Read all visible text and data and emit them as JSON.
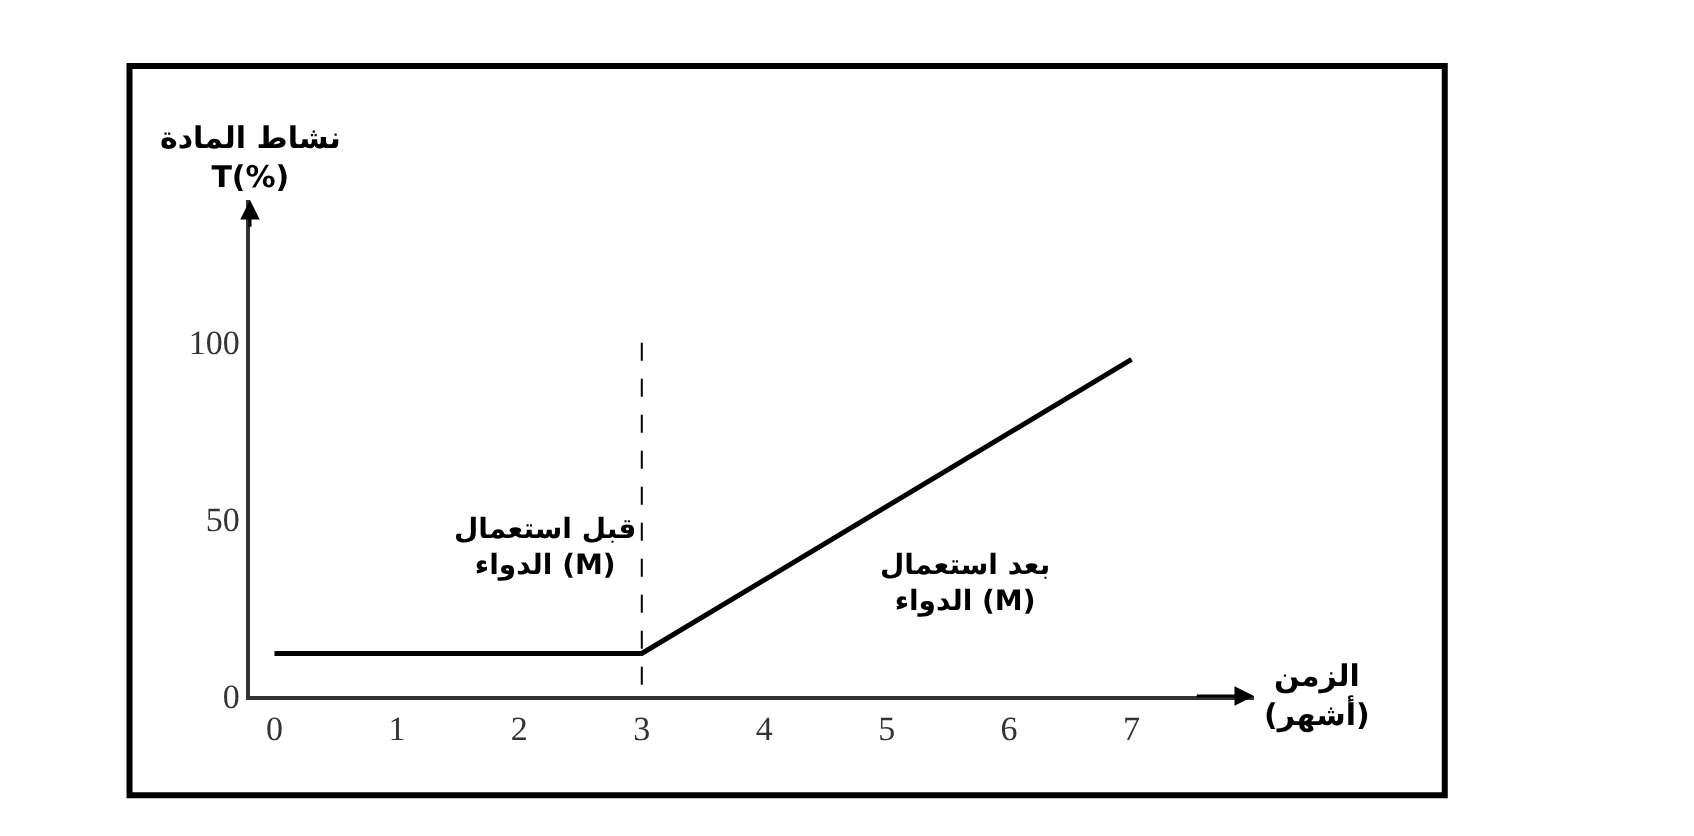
{
  "chart_data": {
    "type": "line",
    "xlabel": "الزمن\n(أشهر)",
    "ylabel": "نشاط المادة\nT(%)",
    "x": [
      0,
      3,
      7
    ],
    "series": [
      {
        "color": "#000000",
        "values": [
          12,
          12,
          95
        ]
      }
    ],
    "xlim": [
      -0.2,
      8
    ],
    "ylim": [
      0,
      140
    ],
    "xticks": [
      0,
      1,
      2,
      3,
      4,
      5,
      6,
      7
    ],
    "yticks": [
      0,
      50,
      100
    ],
    "ref_lines": [
      {
        "axis": "x",
        "value": 3,
        "color": "#000000",
        "line_style": "dashed"
      }
    ],
    "annotations": [
      "قبل استعمال\nالدواء (M)",
      "بعد استعمال\nالدواء (M)"
    ],
    "marker": "none",
    "line_style": "solid"
  }
}
